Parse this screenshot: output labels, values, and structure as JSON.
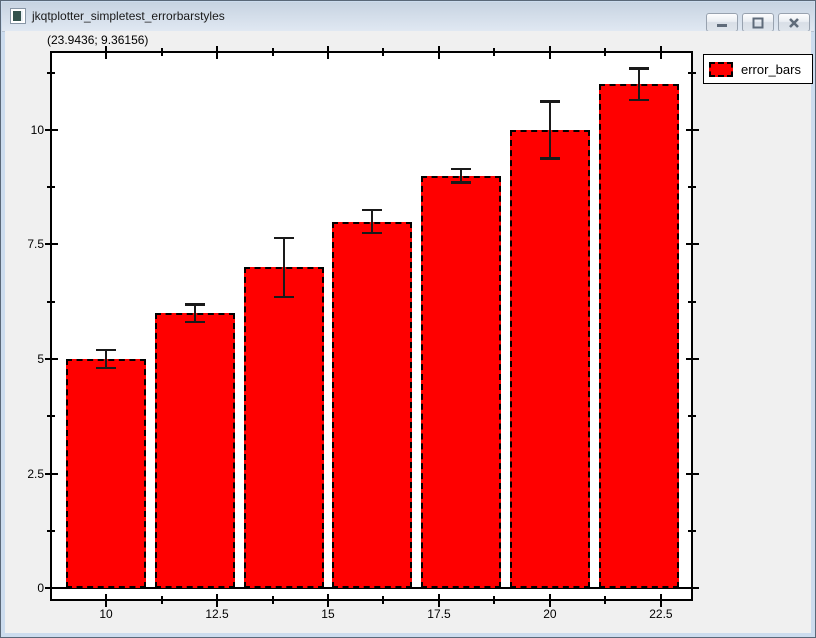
{
  "window": {
    "title": "jkqtplotter_simpletest_errorbarstyles",
    "controls": {
      "minimize_label": "minimize",
      "maximize_label": "maximize",
      "close_label": "close"
    }
  },
  "coordinate_readout": "(23.9436; 9.36156)",
  "legend": {
    "entries": [
      {
        "label": "error_bars",
        "swatch_color": "#ff0000"
      }
    ]
  },
  "chart_data": {
    "type": "bar",
    "title": "",
    "series_name": "error_bars",
    "x": [
      10,
      12,
      14,
      16,
      18,
      20,
      22
    ],
    "values": [
      5,
      6,
      7,
      8,
      9,
      10,
      11
    ],
    "errors": [
      0.2,
      0.2,
      0.65,
      0.26,
      0.15,
      0.63,
      0.35
    ],
    "bar_width": 1.8,
    "bar_color": "#ff0000",
    "bar_border_color": "#000000",
    "bar_border_style": "dashed",
    "error_color": "#1a1a1a",
    "xlabel": "",
    "ylabel": "",
    "xlim": [
      8.76,
      23.2
    ],
    "ylim": [
      -0.26,
      11.7
    ],
    "x_major_ticks": [
      10,
      12.5,
      15,
      17.5,
      20,
      22.5
    ],
    "x_tick_labels": [
      "10",
      "12.5",
      "15",
      "17.5",
      "20",
      "22.5"
    ],
    "x_minor_ticks": [
      11.25,
      13.75,
      16.25,
      18.75,
      21.25
    ],
    "y_major_ticks": [
      0,
      2.5,
      5,
      7.5,
      10
    ],
    "y_tick_labels": [
      "0",
      "2.5",
      "5",
      "7.5",
      "10"
    ],
    "y_minor_ticks": [
      1.25,
      3.75,
      6.25,
      8.75,
      11.25
    ],
    "grid": false,
    "legend_position": "top-right",
    "plot_background": "#ffffff",
    "axis_color": "#000000"
  }
}
